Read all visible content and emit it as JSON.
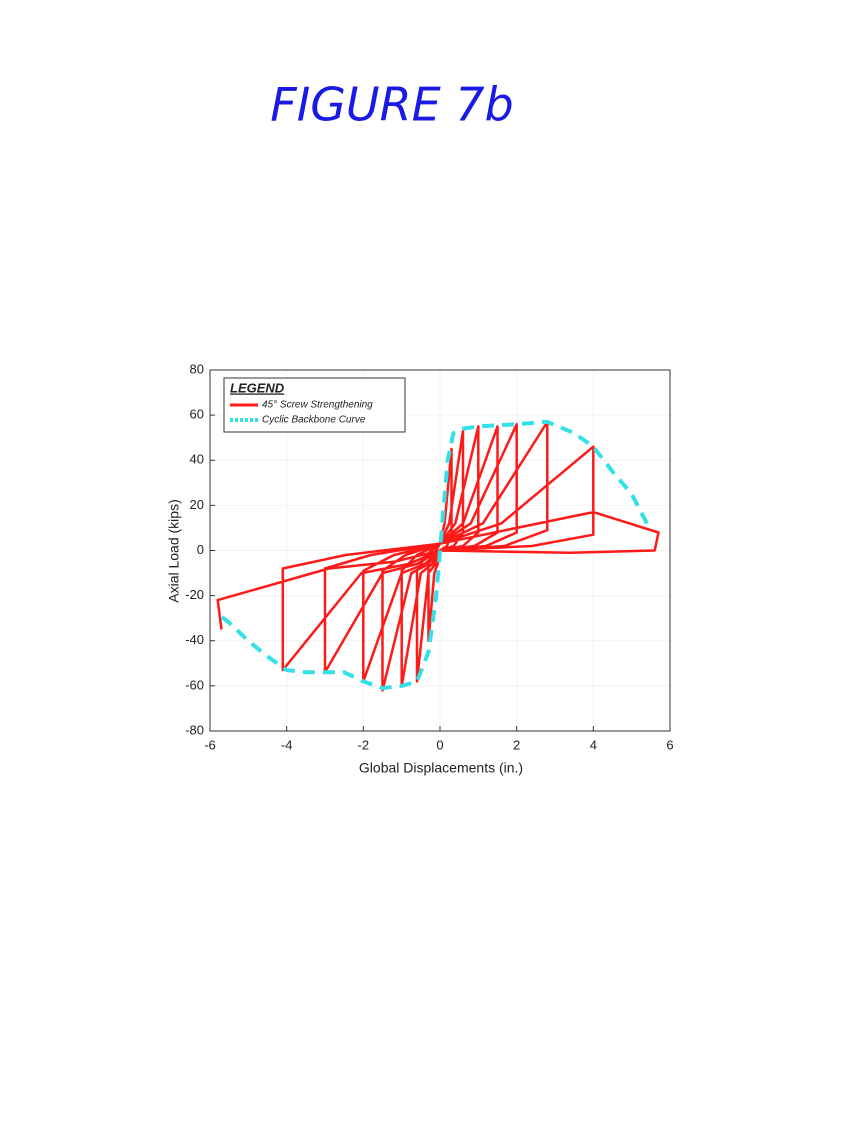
{
  "chart_data": {
    "type": "line",
    "title": "FIGURE 7b",
    "xlabel": "Global Displacements (in.)",
    "ylabel": "Axial Load (kips)",
    "legend_title": "LEGEND",
    "legend": "upper left",
    "grid": true,
    "xlim": [
      -6,
      6
    ],
    "ylim": [
      -80,
      80
    ],
    "xticks": [
      -6,
      -4,
      -2,
      0,
      2,
      4,
      6
    ],
    "yticks": [
      -80,
      -60,
      -40,
      -20,
      0,
      20,
      40,
      60,
      80
    ],
    "series": [
      {
        "name": "45° Screw Strengthening",
        "color": "#ff1a1a",
        "style": "solid",
        "x": [
          0,
          0.12,
          0.3,
          0.3,
          0.18,
          0,
          -0.06,
          -0.15,
          -0.3,
          -0.3,
          -0.18,
          0,
          0.24,
          0.6,
          0.6,
          0.36,
          0,
          -0.12,
          -0.3,
          -0.6,
          -0.6,
          -0.36,
          0,
          0.4,
          1,
          1,
          0.6,
          0,
          -0.2,
          -0.5,
          -1,
          -1,
          -0.6,
          0,
          0.6,
          1.5,
          1.5,
          0.9,
          0,
          -0.3,
          -0.75,
          -1.5,
          -1.5,
          -0.9,
          0,
          0.8,
          2,
          2,
          1.2,
          0,
          -0.4,
          -1,
          -2,
          -2,
          -1.2,
          0,
          1.12,
          2.8,
          2.8,
          1.68,
          0,
          -0.6,
          -1.5,
          -3,
          -3,
          -1.8,
          0,
          1.6,
          4,
          4,
          2.4,
          0,
          -0.82,
          -2.05,
          -4.1,
          -4.1,
          -2.46,
          0,
          2,
          4,
          5.7,
          5.6,
          3.4,
          0,
          -1.2,
          -2.9,
          -5.8,
          -5.7
        ],
        "values": [
          3,
          12,
          45,
          7,
          2,
          0,
          -6,
          -10,
          -40,
          -6,
          -2,
          3,
          12,
          53,
          8,
          2,
          0,
          -6,
          -10,
          -58,
          -9,
          -2,
          3,
          12,
          55,
          8,
          2,
          0,
          -6,
          -10,
          -60,
          -9,
          -2,
          3,
          12,
          55,
          8,
          2,
          0,
          -6,
          -10,
          -62,
          -9,
          -2,
          3,
          12,
          56,
          8,
          2,
          0,
          -6,
          -10,
          -58,
          -9,
          -2,
          3,
          12,
          57,
          9,
          2,
          0,
          -6,
          -10,
          -54,
          -8,
          -2,
          3,
          12,
          46,
          7,
          2,
          0,
          -6,
          -10,
          -53,
          -8,
          -2,
          3,
          10,
          17,
          8,
          0,
          -1,
          0,
          -5,
          -8,
          -22,
          -35
        ]
      },
      {
        "name": "Cyclic Backbone Curve",
        "color": "#33e0e8",
        "style": "dashed",
        "x": [
          5.4,
          5,
          4.5,
          4,
          3.5,
          2.8,
          2,
          1,
          0.6,
          0.35,
          0.2,
          0.1,
          0,
          -0.1,
          -0.3,
          -0.6,
          -1,
          -1.5,
          -2,
          -2.5,
          -3,
          -3.5,
          -4,
          -4.5,
          -5,
          -5.5,
          -5.8
        ],
        "values": [
          12,
          25,
          35,
          46,
          52,
          57,
          56,
          55,
          54,
          52,
          40,
          20,
          0,
          -20,
          -45,
          -58,
          -60,
          -61,
          -58,
          -54,
          -54,
          -54,
          -53,
          -47,
          -40,
          -32,
          -28
        ]
      }
    ]
  }
}
